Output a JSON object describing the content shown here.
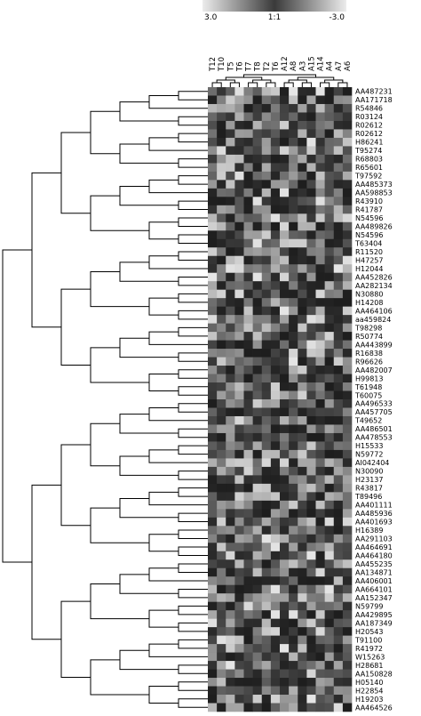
{
  "chart_data": {
    "type": "heatmap",
    "scale": {
      "left_label": "3.0",
      "center_label": "1:1",
      "right_label": "-3.0"
    },
    "columns": [
      "T12",
      "T10",
      "T5",
      "T6",
      "T7",
      "T8",
      "T2",
      "T6",
      "A12",
      "A8",
      "A3",
      "A15",
      "A14",
      "A4",
      "A7",
      "A6"
    ],
    "genes": [
      "AA487231",
      "AA171718",
      "R54846",
      "R03124",
      "R02612",
      "R02612",
      "H86241",
      "T95274",
      "R68803",
      "R65601",
      "T97592",
      "AA485373",
      "AA598853",
      "R43910",
      "R41787",
      "N54596",
      "AA489826",
      "N54596",
      "T63404",
      "R11520",
      "H47257",
      "H12044",
      "AA452826",
      "AA282134",
      "N30880",
      "H14208",
      "AA464106",
      "aa459824",
      "T98298",
      "R50774",
      "AA443899",
      "R16838",
      "R96626",
      "AA482007",
      "H99813",
      "T61948",
      "T60075",
      "AA496533",
      "AA457705",
      "T49652",
      "AA486501",
      "AA478553",
      "H15533",
      "N59772",
      "AI042404",
      "N30090",
      "H23137",
      "R43817",
      "T89496",
      "AA401111",
      "AA485936",
      "AA401693",
      "H16389",
      "AA291103",
      "AA464691",
      "AA464180",
      "AA455235",
      "AA134871",
      "AA406001",
      "AA664101",
      "AA152347",
      "N59799",
      "AA429895",
      "AA187349",
      "H20543",
      "T91100",
      "R41972",
      "W15263",
      "H28681",
      "AA150828",
      "H05140",
      "H22854",
      "H19203",
      "AA464526"
    ],
    "colors": {
      "high": "#f4f4f4",
      "mid": "#686868",
      "low": "#141414",
      "line": "#000000"
    }
  }
}
